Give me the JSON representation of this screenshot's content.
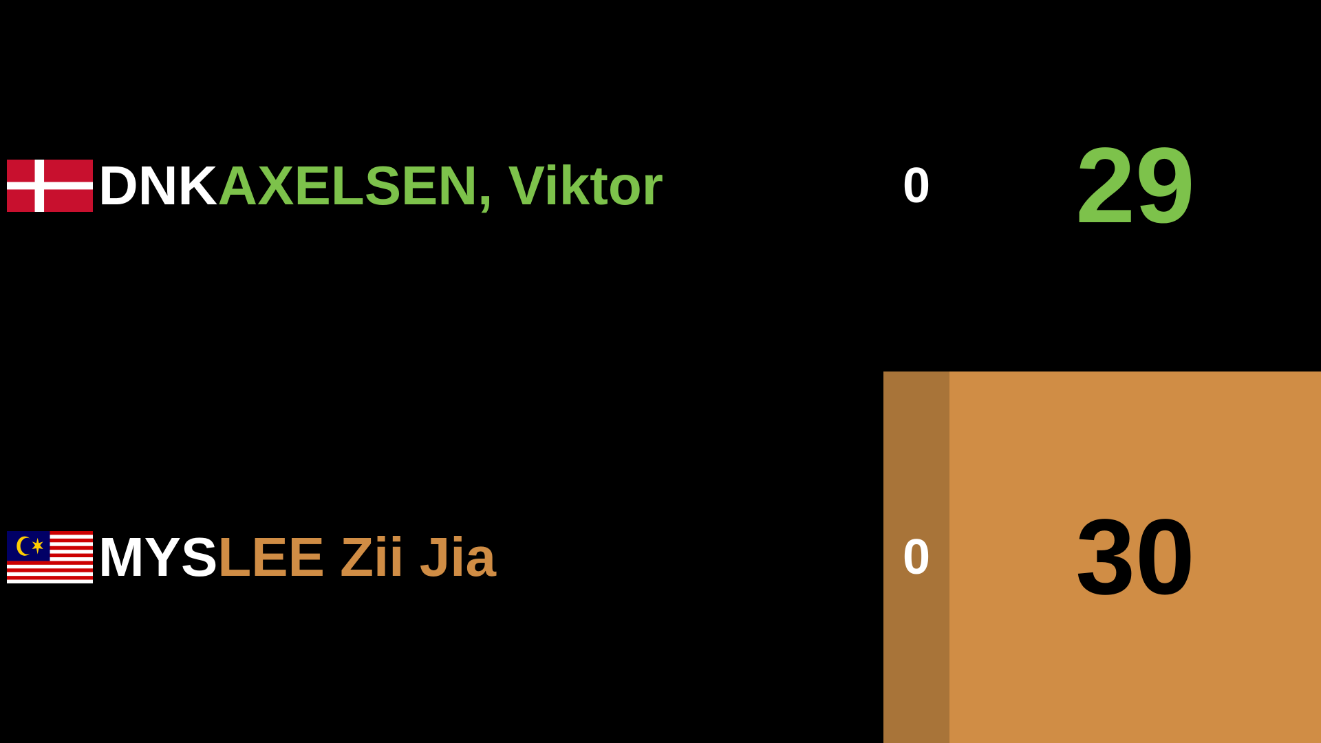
{
  "players": [
    {
      "country_code": "DNK",
      "name": "AXELSEN, Viktor",
      "games": "0",
      "points": "29",
      "flag_icon": "denmark-flag-icon",
      "name_color": "#7dc24b",
      "points_color": "#7dc24b",
      "serving": false
    },
    {
      "country_code": "MYS",
      "name": "LEE Zii Jia",
      "games": "0",
      "points": "30",
      "flag_icon": "malaysia-flag-icon",
      "name_color": "#d08d45",
      "points_color": "#000000",
      "serving": true
    }
  ],
  "colors": {
    "background": "#000000",
    "highlight_points_bg": "#d08d45",
    "highlight_games_bg": "#a87439",
    "text": "#ffffff"
  }
}
